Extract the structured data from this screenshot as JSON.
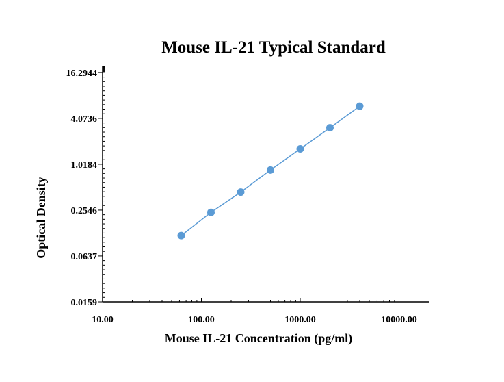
{
  "chart_data": {
    "type": "scatter",
    "title": "Mouse IL-21 Typical Standard",
    "xlabel": "Mouse IL-21 Concentration (pg/ml)",
    "ylabel": "Optical Density",
    "x_scale": "log",
    "y_scale": "log",
    "xlim": [
      10,
      20000
    ],
    "ylim": [
      0.0159,
      20
    ],
    "x_tick_values": [
      10,
      100,
      1000,
      10000
    ],
    "x_tick_labels": [
      "10.00",
      "100.00",
      "1000.00",
      "10000.00"
    ],
    "y_tick_values": [
      0.0159,
      0.0637,
      0.2546,
      1.0184,
      4.0736,
      16.2944
    ],
    "y_tick_labels": [
      "0.0159",
      "0.0637",
      "0.2546",
      "1.0184",
      "4.0736",
      "16.2944"
    ],
    "grid": false,
    "legend": "none",
    "series": [
      {
        "x": [
          62.5,
          125,
          250,
          500,
          1000,
          2000,
          4000
        ],
        "y": [
          0.118,
          0.238,
          0.439,
          0.856,
          1.62,
          3.07,
          5.88
        ],
        "color": "#5b9bd5",
        "line": true,
        "markers": true
      }
    ]
  }
}
